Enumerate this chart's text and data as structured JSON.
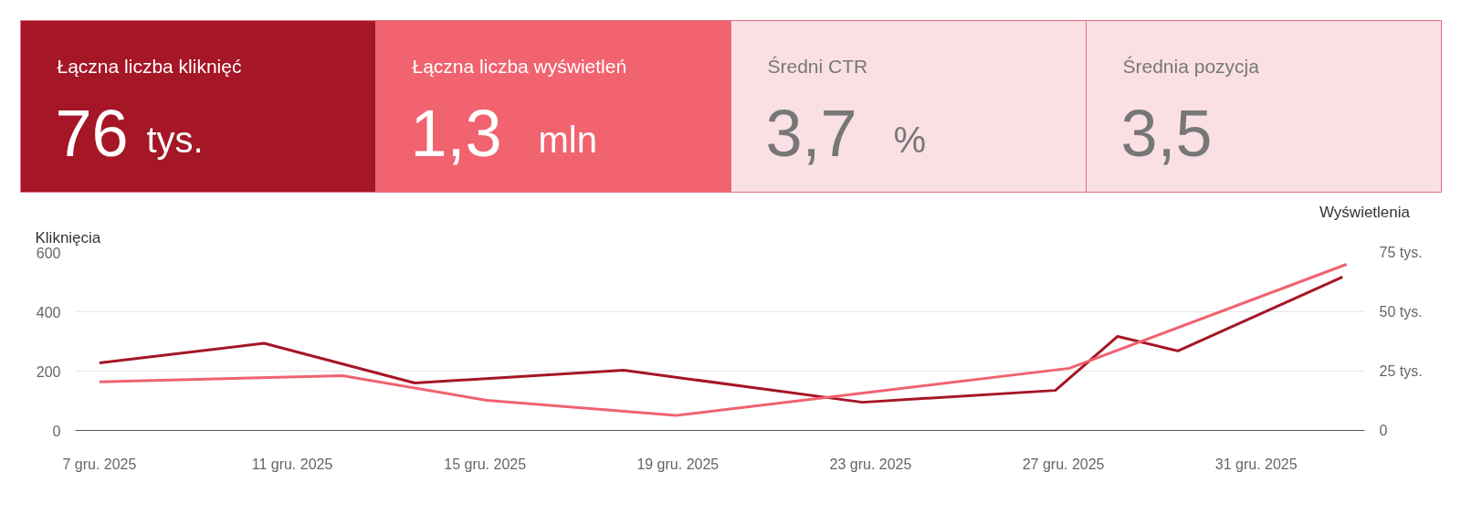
{
  "chart_data": [
    {
      "type": "other",
      "categories": [
        "Łączna liczba kliknięć",
        "Łączna liczba wyświetleń",
        "Średni CTR",
        "Średnia pozycja"
      ],
      "value_labels": [
        "76 tys.",
        "1,3 mln",
        "3,7 %",
        "3,5"
      ],
      "colors": [
        "#a51626",
        "#f0636f",
        "#fae0e4",
        "#fae0e4"
      ]
    },
    {
      "type": "line",
      "ylabel": "Kliknięcia",
      "y2label": "Wyświetlenia",
      "grid": "y",
      "xlim": [
        "2025-12-06T12:00",
        "2026-01-02T06:00"
      ],
      "xticks": [
        {
          "value": "2025-12-07",
          "label": "7 gru. 2025"
        },
        {
          "value": "2025-12-11",
          "label": "11 gru. 2025"
        },
        {
          "value": "2025-12-15",
          "label": "15 gru. 2025"
        },
        {
          "value": "2025-12-19",
          "label": "19 gru. 2025"
        },
        {
          "value": "2025-12-23",
          "label": "23 gru. 2025"
        },
        {
          "value": "2025-12-27",
          "label": "27 gru. 2025"
        },
        {
          "value": "2025-12-31",
          "label": "31 gru. 2025"
        }
      ],
      "ylim": [
        0,
        600
      ],
      "yticks": [
        0,
        200,
        400,
        600
      ],
      "y2lim": [
        0,
        75
      ],
      "y2ticks": [
        {
          "value": 0,
          "label": "0"
        },
        {
          "value": 25,
          "label": "25 tys."
        },
        {
          "value": 50,
          "label": "50 tys."
        },
        {
          "value": 75,
          "label": "75 tys."
        }
      ],
      "series": [
        {
          "color": "#a51626",
          "x": [
            "2025-12-07",
            "2025-12-10T10:00",
            "2025-12-13T13:00",
            "2025-12-17T21:00",
            "2025-12-22T20:00",
            "2025-12-26T20:00",
            "2025-12-28T03:00",
            "2025-12-29T09:00",
            "2026-01-01T19:00"
          ],
          "values": [
            228,
            294,
            160,
            203,
            95,
            135,
            317,
            268,
            517
          ]
        },
        {
          "color": "#f0636f",
          "axis": "y2",
          "x": [
            "2025-12-07",
            "2025-12-12T01:00",
            "2025-12-15T01:00",
            "2025-12-18T23:00",
            "2025-12-27T03:00",
            "2026-01-01T21:00"
          ],
          "values": [
            20.5,
            23.1,
            12.7,
            6.3,
            26.2,
            70
          ]
        }
      ]
    }
  ]
}
